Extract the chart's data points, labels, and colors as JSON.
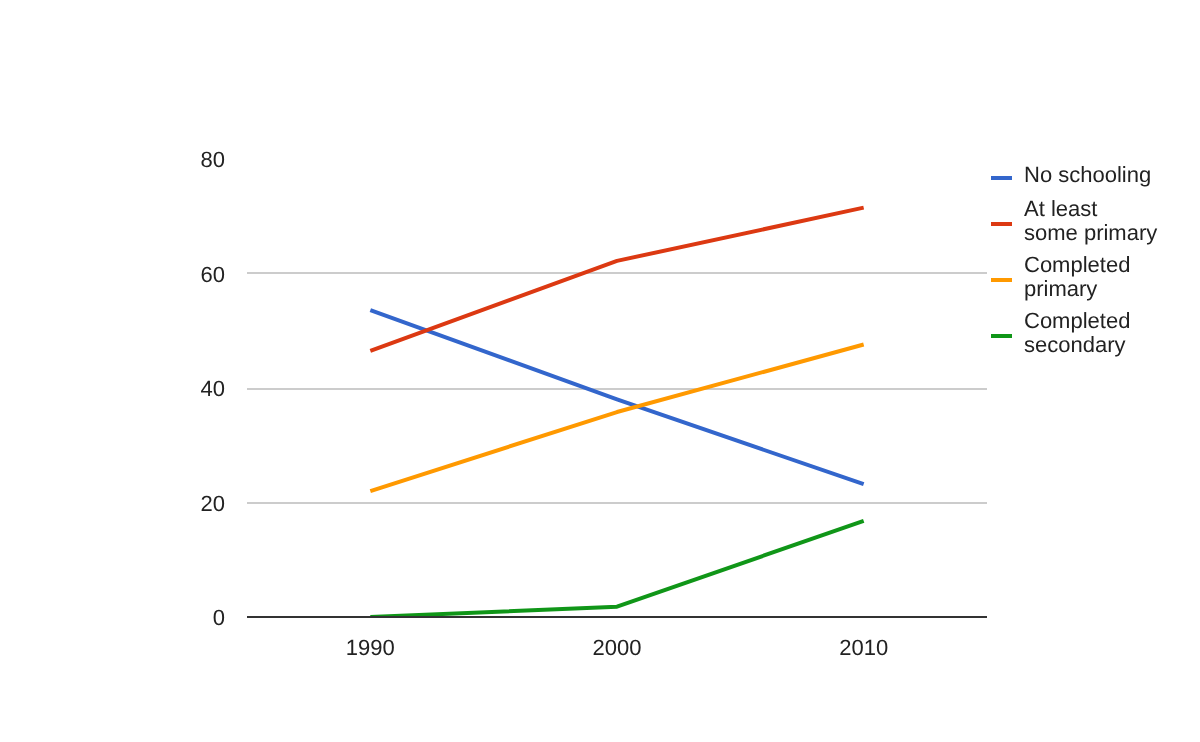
{
  "chart_data": {
    "type": "line",
    "categories": [
      "1990",
      "2000",
      "2010"
    ],
    "series": [
      {
        "name": "No schooling",
        "color": "#3366cc",
        "values": [
          53.6,
          38.0,
          23.2
        ]
      },
      {
        "name": "At least some primary",
        "color": "#dc3912",
        "values": [
          46.5,
          62.2,
          71.5
        ]
      },
      {
        "name": "Completed primary",
        "color": "#ff9900",
        "values": [
          22.0,
          35.8,
          47.6
        ]
      },
      {
        "name": "Completed secondary",
        "color": "#109618",
        "values": [
          0,
          1.8,
          16.8
        ]
      }
    ],
    "ylim": [
      0,
      80
    ],
    "yticks": [
      0,
      20,
      40,
      60,
      80
    ],
    "grid": "y",
    "legend": "right",
    "marker": "none",
    "line_style": "solid"
  }
}
